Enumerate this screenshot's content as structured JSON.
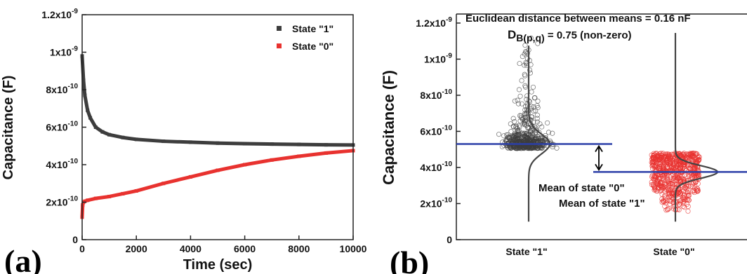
{
  "chart_data": [
    {
      "type": "line",
      "panel_label": "(a)",
      "xlabel": "Time (sec)",
      "ylabel": "Capacitance (F)",
      "xlim": [
        0,
        10000
      ],
      "ylim": [
        0,
        1.2e-09
      ],
      "x_ticks": [
        "0",
        "2000",
        "4000",
        "6000",
        "8000",
        "10000"
      ],
      "y_ticks": [
        {
          "base": "0",
          "exp": ""
        },
        {
          "base": "2x10",
          "exp": "-10"
        },
        {
          "base": "4x10",
          "exp": "-10"
        },
        {
          "base": "6x10",
          "exp": "-10"
        },
        {
          "base": "8x10",
          "exp": "-10"
        },
        {
          "base": "1x10",
          "exp": "-9"
        },
        {
          "base": "1.2x10",
          "exp": "-9"
        }
      ],
      "legend_position": "top-right",
      "series": [
        {
          "name": "State \"1\"",
          "color": "#3d3d3d",
          "x": [
            0,
            50,
            100,
            200,
            300,
            500,
            750,
            1000,
            1500,
            2000,
            3000,
            4000,
            5000,
            6000,
            7000,
            8000,
            9000,
            10000
          ],
          "y": [
            9.8e-10,
            8.5e-10,
            7.7e-10,
            6.9e-10,
            6.5e-10,
            6e-10,
            5.75e-10,
            5.6e-10,
            5.45e-10,
            5.35e-10,
            5.25e-10,
            5.2e-10,
            5.15e-10,
            5.12e-10,
            5.1e-10,
            5.08e-10,
            5.06e-10,
            5.05e-10
          ]
        },
        {
          "name": "State \"0\"",
          "color": "#e8322f",
          "x": [
            0,
            20,
            50,
            100,
            200,
            500,
            1000,
            1500,
            2000,
            3000,
            4000,
            5000,
            6000,
            7000,
            8000,
            9000,
            10000
          ],
          "y": [
            1.2e-10,
            1.85e-10,
            2e-10,
            2.05e-10,
            2.1e-10,
            2.2e-10,
            2.3e-10,
            2.45e-10,
            2.6e-10,
            3e-10,
            3.35e-10,
            3.7e-10,
            4e-10,
            4.25e-10,
            4.45e-10,
            4.62e-10,
            4.75e-10
          ]
        }
      ]
    },
    {
      "type": "scatter",
      "panel_label": "(b)",
      "ylabel": "Capacitance (F)",
      "ylim": [
        0,
        1.25e-09
      ],
      "categories": [
        "State \"1\"",
        "State \"0\""
      ],
      "y_ticks": [
        {
          "base": "0",
          "exp": ""
        },
        {
          "base": "2x10",
          "exp": "-10"
        },
        {
          "base": "4x10",
          "exp": "-10"
        },
        {
          "base": "6x10",
          "exp": "-10"
        },
        {
          "base": "8x10",
          "exp": "-10"
        },
        {
          "base": "1x10",
          "exp": "-9"
        },
        {
          "base": "1.2x10",
          "exp": "-9"
        }
      ],
      "series": [
        {
          "name": "State \"1\"",
          "color": "#3d3d3d",
          "mean": 5.3e-10,
          "range": [
            5e-10,
            1.13e-09
          ]
        },
        {
          "name": "State \"0\"",
          "color": "#e8322f",
          "mean": 3.75e-10,
          "range": [
            1.5e-10,
            4.8e-10
          ]
        }
      ],
      "annotations": {
        "title": "Euclidean distance between means = 0.16 nF",
        "db_prefix": "D",
        "db_sub": "B(p,q)",
        "db_suffix": " = 0.75 (non-zero)",
        "mean1_label": "Mean of state \"1\"",
        "mean0_label": "Mean of state \"0\""
      },
      "mean_line_color": "#2b3fa8"
    }
  ]
}
